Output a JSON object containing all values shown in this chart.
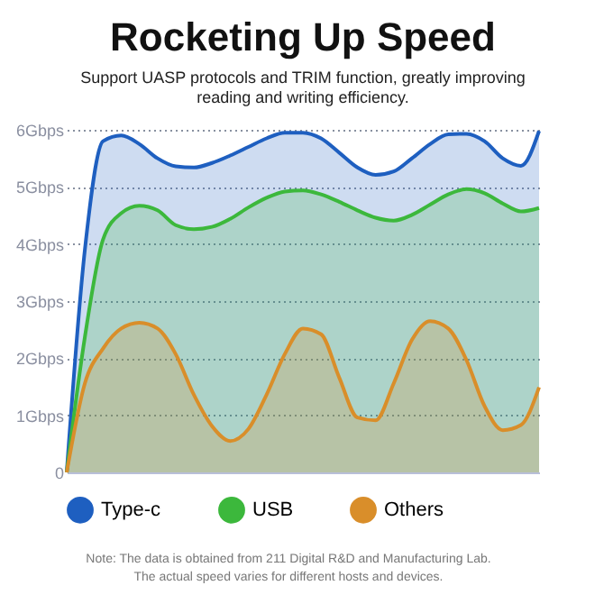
{
  "chart_data": {
    "type": "area",
    "title": "Rocketing Up Speed",
    "subtitle": [
      "Support UASP protocols and TRIM function, greatly improving",
      "reading and writing efficiency."
    ],
    "categories": [
      null,
      null,
      null,
      null,
      null,
      null,
      null,
      null,
      null,
      null,
      null,
      null,
      null,
      null,
      null,
      null,
      null,
      null,
      null,
      null,
      null,
      null,
      null,
      null,
      null,
      null,
      null
    ],
    "series": [
      {
        "name": "Type-c",
        "color": "#1e5fc0",
        "values": [
          0,
          3.9,
          5.8,
          5.9,
          5.75,
          5.5,
          5.36,
          5.34,
          5.42,
          5.55,
          5.7,
          5.85,
          5.95,
          5.95,
          5.85,
          5.6,
          5.34,
          5.21,
          5.27,
          5.5,
          5.75,
          5.92,
          5.93,
          5.8,
          5.5,
          5.37,
          5.98
        ]
      },
      {
        "name": "USB",
        "color": "#3cb83c",
        "values": [
          0,
          2.37,
          4.08,
          4.54,
          4.67,
          4.59,
          4.33,
          4.26,
          4.3,
          4.44,
          4.64,
          4.81,
          4.92,
          4.94,
          4.87,
          4.74,
          4.59,
          4.46,
          4.41,
          4.51,
          4.69,
          4.87,
          4.96,
          4.89,
          4.71,
          4.57,
          4.63
        ]
      },
      {
        "name": "Others",
        "color": "#d98e2a",
        "values": [
          0,
          1.56,
          2.17,
          2.52,
          2.62,
          2.52,
          2.07,
          1.36,
          0.81,
          0.55,
          0.76,
          1.36,
          2.07,
          2.52,
          2.42,
          1.66,
          0.96,
          0.91,
          1.56,
          2.32,
          2.65,
          2.52,
          1.97,
          1.16,
          0.74,
          0.83,
          1.49
        ]
      }
    ],
    "ylim": [
      0,
      6
    ],
    "yticks": [
      0,
      {
        "value": 1,
        "label": "1Gbps"
      },
      {
        "value": 2,
        "label": "2Gbps"
      },
      {
        "value": 3,
        "label": "3Gbps"
      },
      {
        "value": 4,
        "label": "4Gbps"
      },
      {
        "value": 5,
        "label": "5Gbps"
      },
      {
        "value": 6,
        "label": "6Gbps"
      }
    ],
    "grid": "y",
    "legend": "bottom",
    "tick_labels": "y",
    "annotations": [
      "Note: The data is obtained from 211 Digital R&D and Manufacturing Lab.",
      "The actual speed varies for different hosts and devices."
    ]
  }
}
